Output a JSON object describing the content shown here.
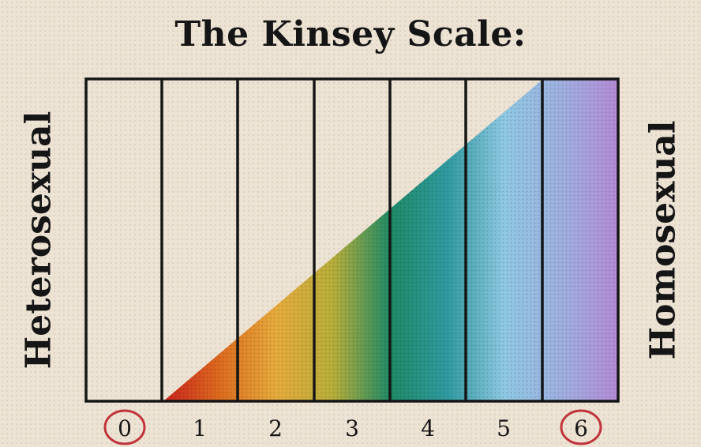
{
  "title": "The Kinsey Scale:",
  "left_label": "Heterosexual",
  "right_label": "Homosexual",
  "scale_values": [
    "0",
    "1",
    "2",
    "3",
    "4",
    "5",
    "6"
  ],
  "circled_values": [
    "0",
    "6"
  ],
  "colors": {
    "background": "#ede3d4",
    "ink": "#151515",
    "circle": "#c0343a",
    "gradient": [
      "#c8201c",
      "#dc6a1e",
      "#e6ab3c",
      "#b8ae3a",
      "#1f8a66",
      "#2f9aa0",
      "#8ec8e2",
      "#9fb0e0",
      "#b48ad6"
    ]
  }
}
